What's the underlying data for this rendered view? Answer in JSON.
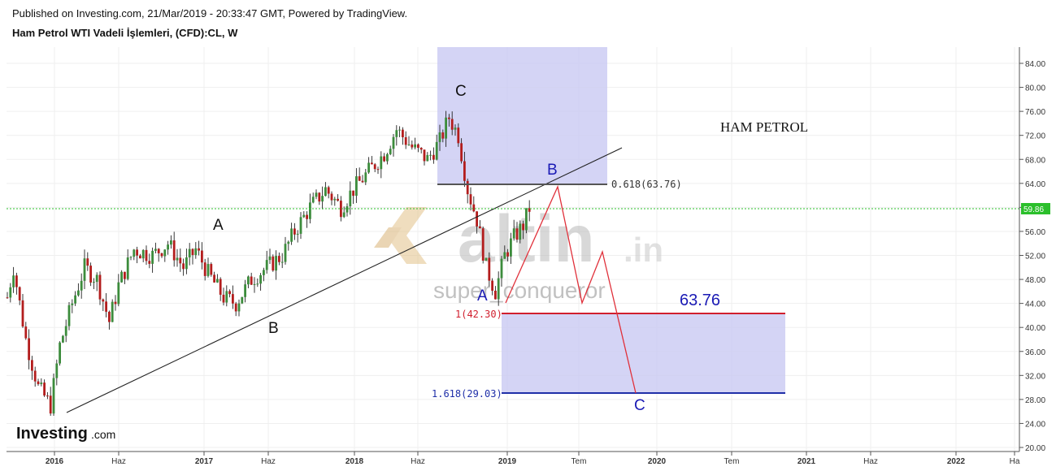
{
  "header": {
    "published": "Published on Investing.com, 21/Mar/2019 - 20:33:47 GMT, Powered by TradingView.",
    "symbol": "Ham Petrol WTI Vadeli İşlemleri, (CFD):CL, W"
  },
  "branding": {
    "logo_main": "Investing",
    "logo_suffix": ".com"
  },
  "watermark": {
    "brand": "altin",
    "brand_tld": ".in",
    "author": "super_conqueror"
  },
  "colors": {
    "up": "#3c8c3c",
    "down": "#b31d1d",
    "wick": "#222222",
    "box_fill": "#c9c9f2",
    "fib_red": "#d11f2e",
    "fib_blue": "#1f2fa8",
    "path_red": "#e0303a",
    "price_line": "#2bbf2b",
    "trend": "#222222"
  },
  "chart_data": {
    "type": "candlestick",
    "title": "Ham Petrol WTI Vadeli İşlemleri, (CFD):CL, W",
    "ylim": [
      20,
      86
    ],
    "x_ticks": [
      "2016",
      "Haz",
      "2017",
      "Haz",
      "2018",
      "Haz",
      "2019",
      "Tem",
      "2020",
      "Tem",
      "2021",
      "Haz",
      "2022",
      "Ha"
    ],
    "x_ticks_bold": [
      "2016",
      "2017",
      "2018",
      "2019",
      "2020",
      "2021",
      "2022"
    ],
    "y_ticks": [
      "84.00",
      "80.00",
      "76.00",
      "72.00",
      "68.00",
      "64.00",
      "60.00",
      "56.00",
      "52.00",
      "48.00",
      "44.00",
      "40.00",
      "36.00",
      "32.00",
      "28.00",
      "24.00",
      "20.00"
    ],
    "last_price": "59.86",
    "annotations": {
      "title_text": "HAM PETROL",
      "target_value": "63.76",
      "fib_0618": "0.618(63.76)",
      "fib_1": "1(42.30)",
      "fib_1618": "1.618(29.03)",
      "wave_A_2017": "A",
      "wave_B_2017": "B",
      "wave_C_2018": "C",
      "wave_A_2019": "A",
      "wave_B_2019": "B",
      "wave_C_2019": "C"
    },
    "price_series": [
      {
        "t": 0,
        "v": 45
      },
      {
        "t": 2,
        "v": 50
      },
      {
        "t": 6,
        "v": 38
      },
      {
        "t": 10,
        "v": 30
      },
      {
        "t": 14,
        "v": 27
      },
      {
        "t": 17,
        "v": 37
      },
      {
        "t": 21,
        "v": 44
      },
      {
        "t": 25,
        "v": 50
      },
      {
        "t": 29,
        "v": 48
      },
      {
        "t": 33,
        "v": 41
      },
      {
        "t": 36,
        "v": 47
      },
      {
        "t": 41,
        "v": 53
      },
      {
        "t": 47,
        "v": 52
      },
      {
        "t": 52,
        "v": 54
      },
      {
        "t": 57,
        "v": 50
      },
      {
        "t": 61,
        "v": 53
      },
      {
        "t": 65,
        "v": 49
      },
      {
        "t": 70,
        "v": 45
      },
      {
        "t": 74,
        "v": 44
      },
      {
        "t": 79,
        "v": 48
      },
      {
        "t": 84,
        "v": 50
      },
      {
        "t": 89,
        "v": 52
      },
      {
        "t": 93,
        "v": 56
      },
      {
        "t": 98,
        "v": 60
      },
      {
        "t": 103,
        "v": 63
      },
      {
        "t": 108,
        "v": 60
      },
      {
        "t": 112,
        "v": 63
      },
      {
        "t": 117,
        "v": 66
      },
      {
        "t": 122,
        "v": 69
      },
      {
        "t": 126,
        "v": 73
      },
      {
        "t": 131,
        "v": 70
      },
      {
        "t": 136,
        "v": 68
      },
      {
        "t": 140,
        "v": 71
      },
      {
        "t": 143,
        "v": 75
      },
      {
        "t": 146,
        "v": 72
      },
      {
        "t": 149,
        "v": 63
      },
      {
        "t": 152,
        "v": 58
      },
      {
        "t": 155,
        "v": 50
      },
      {
        "t": 158,
        "v": 46
      },
      {
        "t": 161,
        "v": 52
      },
      {
        "t": 164,
        "v": 55
      },
      {
        "t": 167,
        "v": 57
      },
      {
        "t": 169,
        "v": 59.86
      }
    ]
  }
}
